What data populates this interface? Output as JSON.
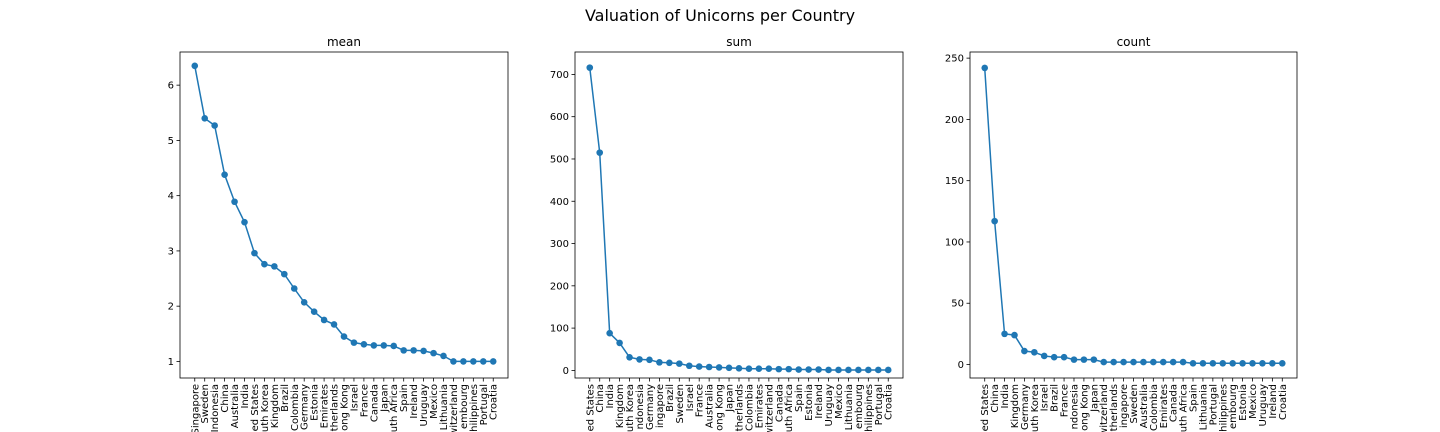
{
  "figure_title": "Valuation of Unicorns per Country",
  "colors": {
    "series": "#1f77b4"
  },
  "chart_data": [
    {
      "type": "line",
      "title": "mean",
      "xlabel": "",
      "ylabel": "",
      "markers": "circle",
      "grid": false,
      "ylim": [
        0.7,
        6.6
      ],
      "yticks": [
        1,
        2,
        3,
        4,
        5,
        6
      ],
      "categories": [
        "Singapore",
        "Sweden",
        "Indonesia",
        "China",
        "Australia",
        "India",
        "United States",
        "South Korea",
        "United Kingdom",
        "Brazil",
        "Colombia",
        "Germany",
        "Estonia",
        "United Arab Emirates",
        "Netherlands",
        "Hong Kong",
        "Israel",
        "France",
        "Canada",
        "Japan",
        "South Africa",
        "Spain",
        "Ireland",
        "Uruguay",
        "Mexico",
        "Lithuania",
        "Switzerland",
        "Luxembourg",
        "Philippines",
        "Portugal",
        "Croatia"
      ],
      "tick_labels": [
        "Singapore",
        "Sweden",
        "Indonesia",
        "China",
        "Australia",
        "India",
        "ed States",
        "uth Korea",
        "Kingdom",
        "Brazil",
        "Colombia",
        "Germany",
        "Estonia",
        "Emirates",
        "therlands",
        "ong Kong",
        "Israel",
        "France",
        "Canada",
        "Japan",
        "uth Africa",
        "Spain",
        "Ireland",
        "Uruguay",
        "Mexico",
        "Lithuania",
        "witzerland",
        "embourg",
        "hilippines",
        "Portugal",
        "Croatia"
      ],
      "values": [
        6.35,
        5.4,
        5.27,
        4.38,
        3.89,
        3.52,
        2.96,
        2.76,
        2.72,
        2.58,
        2.32,
        2.07,
        1.9,
        1.75,
        1.67,
        1.45,
        1.34,
        1.31,
        1.29,
        1.29,
        1.28,
        1.2,
        1.2,
        1.19,
        1.15,
        1.1,
        1.0,
        1.0,
        1.0,
        1.0,
        1.0
      ]
    },
    {
      "type": "line",
      "title": "sum",
      "xlabel": "",
      "ylabel": "",
      "markers": "circle",
      "grid": false,
      "ylim": [
        -18,
        753
      ],
      "yticks": [
        0,
        100,
        200,
        300,
        400,
        500,
        600,
        700
      ],
      "categories": [
        "United States",
        "China",
        "India",
        "United Kingdom",
        "South Korea",
        "Indonesia",
        "Germany",
        "Singapore",
        "Brazil",
        "Sweden",
        "Israel",
        "France",
        "Australia",
        "Hong Kong",
        "Japan",
        "Netherlands",
        "Colombia",
        "United Arab Emirates",
        "Switzerland",
        "Canada",
        "South Africa",
        "Spain",
        "Estonia",
        "Ireland",
        "Uruguay",
        "Mexico",
        "Lithuania",
        "Luxembourg",
        "Philippines",
        "Portugal",
        "Croatia"
      ],
      "tick_labels": [
        "ed States",
        "China",
        "India",
        "Kingdom",
        "uth Korea",
        "ndonesia",
        "Germany",
        "ingapore",
        "Brazil",
        "Sweden",
        "Israel",
        "France",
        "Australia",
        "ong Kong",
        "Japan",
        "therlands",
        "Colombia",
        "Emirates",
        "witzerland",
        "Canada",
        "uth Africa",
        "Spain",
        "Estonia",
        "Ireland",
        "Uruguay",
        "Mexico",
        "Lithuania",
        "embourg",
        "hilippines",
        "Portugal",
        "Croatia"
      ],
      "values": [
        716,
        515,
        88,
        65,
        31,
        26,
        25,
        19,
        18,
        16,
        11,
        9,
        8,
        7,
        6,
        5,
        4,
        4,
        4,
        3,
        3,
        2,
        2,
        2,
        1,
        1,
        1,
        1,
        1,
        1,
        1
      ]
    },
    {
      "type": "line",
      "title": "count",
      "xlabel": "",
      "ylabel": "",
      "markers": "circle",
      "grid": false,
      "ylim": [
        -11,
        255
      ],
      "yticks": [
        0,
        50,
        100,
        150,
        200,
        250
      ],
      "categories": [
        "United States",
        "China",
        "India",
        "United Kingdom",
        "Germany",
        "South Korea",
        "Israel",
        "Brazil",
        "France",
        "Indonesia",
        "Hong Kong",
        "Japan",
        "Switzerland",
        "Netherlands",
        "Singapore",
        "Sweden",
        "Australia",
        "Colombia",
        "United Arab Emirates",
        "Canada",
        "South Africa",
        "Spain",
        "Lithuania",
        "Portugal",
        "Philippines",
        "Luxembourg",
        "Estonia",
        "Mexico",
        "Uruguay",
        "Ireland",
        "Croatia"
      ],
      "tick_labels": [
        "ed States",
        "China",
        "India",
        "Kingdom",
        "Germany",
        "uth Korea",
        "Israel",
        "Brazil",
        "France",
        "ndonesia",
        "ong Kong",
        "Japan",
        "witzerland",
        "therlands",
        "ingapore",
        "Sweden",
        "Australia",
        "Colombia",
        "Emirates",
        "Canada",
        "uth Africa",
        "Spain",
        "Lithuania",
        "Portugal",
        "hilippines",
        "embourg",
        "Estonia",
        "Mexico",
        "Uruguay",
        "Ireland",
        "Croatia"
      ],
      "values": [
        242,
        117,
        25,
        24,
        11,
        10,
        7,
        6,
        6,
        4,
        4,
        4,
        2,
        2,
        2,
        2,
        2,
        2,
        2,
        2,
        2,
        1,
        1,
        1,
        1,
        1,
        1,
        1,
        1,
        1,
        1
      ]
    }
  ]
}
